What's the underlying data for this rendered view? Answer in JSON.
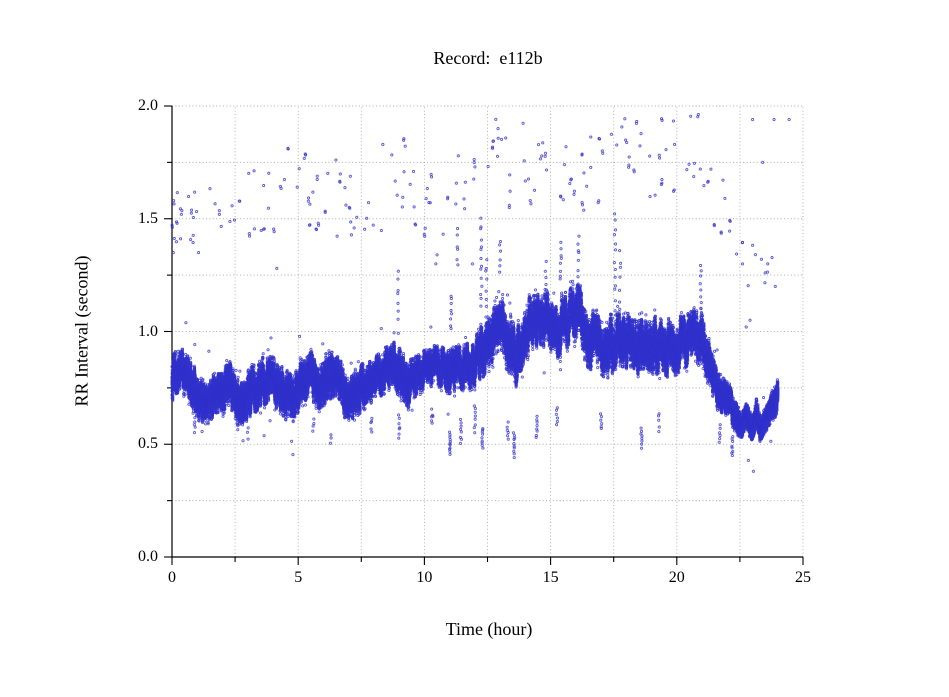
{
  "chart_data": {
    "type": "scatter",
    "title": "Record:  e112b",
    "xlabel": "Time (hour)",
    "ylabel": "RR Interval (second)",
    "xlim": [
      0,
      25
    ],
    "ylim": [
      0.0,
      2.0
    ],
    "x_major_ticks": [
      0,
      5,
      10,
      15,
      20,
      25
    ],
    "x_major_tick_labels": [
      "0",
      "5",
      "10",
      "15",
      "20",
      "25"
    ],
    "x_minor_ticks": [
      2.5,
      7.5,
      12.5,
      17.5,
      22.5
    ],
    "y_major_ticks": [
      0.0,
      0.5,
      1.0,
      1.5,
      2.0
    ],
    "y_major_tick_labels": [
      "0.0",
      "0.5",
      "1.0",
      "1.5",
      "2.0"
    ],
    "y_minor_ticks": [
      0.25,
      0.75,
      1.25,
      1.75
    ],
    "grid": "dotted-at-every-minor-and-major",
    "legend": "none",
    "style": {
      "point_color": "#3232cc",
      "grid_color": "#ababab",
      "axis_color": "#000000",
      "background": "#ffffff",
      "marker": "small-open-circle",
      "marker_size_px": 3
    },
    "seed": 42,
    "description": "24-hour RR-interval tachogram. Dense sinus-rhythm band plus sparse long-interval outliers (1.3-2.0 s).",
    "band_profile": [
      [
        0.0,
        0.79,
        0.08
      ],
      [
        0.3,
        0.83,
        0.07
      ],
      [
        0.7,
        0.78,
        0.08
      ],
      [
        1.1,
        0.7,
        0.07
      ],
      [
        1.4,
        0.67,
        0.06
      ],
      [
        1.7,
        0.73,
        0.07
      ],
      [
        2.0,
        0.72,
        0.07
      ],
      [
        2.2,
        0.8,
        0.08
      ],
      [
        2.5,
        0.7,
        0.07
      ],
      [
        2.8,
        0.68,
        0.07
      ],
      [
        3.1,
        0.73,
        0.08
      ],
      [
        3.5,
        0.76,
        0.08
      ],
      [
        3.9,
        0.8,
        0.08
      ],
      [
        4.2,
        0.74,
        0.08
      ],
      [
        4.5,
        0.72,
        0.08
      ],
      [
        4.8,
        0.7,
        0.07
      ],
      [
        5.1,
        0.78,
        0.08
      ],
      [
        5.5,
        0.8,
        0.08
      ],
      [
        5.8,
        0.74,
        0.07
      ],
      [
        6.1,
        0.79,
        0.08
      ],
      [
        6.4,
        0.81,
        0.08
      ],
      [
        6.7,
        0.75,
        0.08
      ],
      [
        7.0,
        0.7,
        0.07
      ],
      [
        7.3,
        0.73,
        0.08
      ],
      [
        7.7,
        0.77,
        0.07
      ],
      [
        8.0,
        0.79,
        0.07
      ],
      [
        8.4,
        0.82,
        0.07
      ],
      [
        8.8,
        0.88,
        0.08
      ],
      [
        9.0,
        0.8,
        0.09
      ],
      [
        9.3,
        0.76,
        0.08
      ],
      [
        9.6,
        0.8,
        0.07
      ],
      [
        10.0,
        0.83,
        0.06
      ],
      [
        10.4,
        0.85,
        0.06
      ],
      [
        10.8,
        0.83,
        0.07
      ],
      [
        11.2,
        0.82,
        0.08
      ],
      [
        11.6,
        0.84,
        0.07
      ],
      [
        12.0,
        0.86,
        0.08
      ],
      [
        12.4,
        0.92,
        0.1
      ],
      [
        12.8,
        1.0,
        0.1
      ],
      [
        13.1,
        1.02,
        0.1
      ],
      [
        13.4,
        0.95,
        0.11
      ],
      [
        13.6,
        0.88,
        0.1
      ],
      [
        13.9,
        0.98,
        0.1
      ],
      [
        14.2,
        1.03,
        0.1
      ],
      [
        14.6,
        1.07,
        0.09
      ],
      [
        15.0,
        1.04,
        0.1
      ],
      [
        15.3,
        1.0,
        0.1
      ],
      [
        15.6,
        1.05,
        0.1
      ],
      [
        15.9,
        1.09,
        0.1
      ],
      [
        16.2,
        1.05,
        0.11
      ],
      [
        16.5,
        0.97,
        0.1
      ],
      [
        16.9,
        0.94,
        0.1
      ],
      [
        17.2,
        0.92,
        0.1
      ],
      [
        17.5,
        0.96,
        0.1
      ],
      [
        17.8,
        0.97,
        0.1
      ],
      [
        18.1,
        0.93,
        0.1
      ],
      [
        18.4,
        0.92,
        0.1
      ],
      [
        18.7,
        0.95,
        0.1
      ],
      [
        19.0,
        0.96,
        0.1
      ],
      [
        19.4,
        0.94,
        0.1
      ],
      [
        19.8,
        0.93,
        0.1
      ],
      [
        20.1,
        0.95,
        0.09
      ],
      [
        20.5,
        0.96,
        0.09
      ],
      [
        20.9,
        1.0,
        0.1
      ],
      [
        21.1,
        0.95,
        0.1
      ],
      [
        21.3,
        0.85,
        0.08
      ],
      [
        21.5,
        0.76,
        0.07
      ],
      [
        21.8,
        0.71,
        0.06
      ],
      [
        22.1,
        0.68,
        0.06
      ],
      [
        22.35,
        0.62,
        0.05
      ],
      [
        22.55,
        0.57,
        0.04
      ],
      [
        22.75,
        0.63,
        0.04
      ],
      [
        23.0,
        0.56,
        0.04
      ],
      [
        23.15,
        0.65,
        0.04
      ],
      [
        23.3,
        0.57,
        0.04
      ],
      [
        23.45,
        0.6,
        0.04
      ],
      [
        23.6,
        0.63,
        0.04
      ],
      [
        23.75,
        0.66,
        0.05
      ],
      [
        23.95,
        0.7,
        0.05
      ],
      [
        24.0,
        0.72,
        0.05
      ]
    ],
    "streak_columns": [
      [
        8.95,
        0.98,
        1.3,
        8
      ],
      [
        9.0,
        0.52,
        0.64,
        7
      ],
      [
        10.3,
        0.58,
        0.66,
        5
      ],
      [
        11.0,
        0.45,
        0.56,
        11
      ],
      [
        11.05,
        1.0,
        1.17,
        8
      ],
      [
        11.3,
        1.28,
        1.47,
        6
      ],
      [
        11.45,
        0.5,
        0.62,
        8
      ],
      [
        12.0,
        0.55,
        0.68,
        8
      ],
      [
        12.25,
        1.1,
        1.52,
        14
      ],
      [
        12.3,
        0.48,
        0.58,
        9
      ],
      [
        12.45,
        1.05,
        1.35,
        8
      ],
      [
        13.0,
        1.25,
        1.42,
        6
      ],
      [
        13.3,
        0.52,
        0.6,
        6
      ],
      [
        13.55,
        0.44,
        0.56,
        10
      ],
      [
        14.45,
        0.52,
        0.63,
        8
      ],
      [
        14.8,
        1.15,
        1.32,
        6
      ],
      [
        15.25,
        0.58,
        0.67,
        6
      ],
      [
        15.4,
        1.22,
        1.4,
        8
      ],
      [
        16.1,
        1.2,
        1.45,
        8
      ],
      [
        17.0,
        0.56,
        0.64,
        6
      ],
      [
        17.55,
        1.05,
        1.55,
        14
      ],
      [
        17.75,
        1.1,
        1.4,
        6
      ],
      [
        18.6,
        0.48,
        0.58,
        8
      ],
      [
        19.3,
        0.55,
        0.65,
        5
      ],
      [
        20.95,
        1.1,
        1.3,
        8
      ],
      [
        21.7,
        0.5,
        0.6,
        6
      ],
      [
        22.2,
        0.44,
        0.54,
        8
      ],
      [
        0.9,
        0.55,
        0.63,
        5
      ],
      [
        2.6,
        0.55,
        0.62,
        4
      ],
      [
        3.0,
        0.52,
        0.58,
        3
      ],
      [
        5.6,
        0.55,
        0.62,
        4
      ],
      [
        6.3,
        0.5,
        0.56,
        3
      ],
      [
        7.9,
        0.55,
        0.63,
        5
      ]
    ],
    "outlier_regions": [
      [
        0.0,
        0.6,
        1.38,
        1.78,
        10
      ],
      [
        0.6,
        1.6,
        1.3,
        1.72,
        9
      ],
      [
        1.6,
        3.0,
        1.4,
        1.62,
        8
      ],
      [
        3.0,
        4.6,
        1.42,
        1.78,
        12
      ],
      [
        4.6,
        6.2,
        1.45,
        1.82,
        14
      ],
      [
        6.2,
        7.2,
        1.42,
        1.8,
        10
      ],
      [
        7.2,
        8.3,
        1.42,
        1.58,
        7
      ],
      [
        8.3,
        9.6,
        1.5,
        1.85,
        12
      ],
      [
        9.6,
        11.0,
        1.42,
        1.75,
        10
      ],
      [
        11.0,
        12.0,
        1.48,
        1.8,
        8
      ],
      [
        12.3,
        13.2,
        1.7,
        2.0,
        8
      ],
      [
        13.2,
        14.6,
        1.55,
        1.98,
        12
      ],
      [
        14.6,
        16.1,
        1.58,
        1.96,
        11
      ],
      [
        16.1,
        17.2,
        1.52,
        1.9,
        10
      ],
      [
        17.2,
        18.2,
        1.72,
        1.97,
        9
      ],
      [
        18.2,
        19.6,
        1.55,
        1.95,
        12
      ],
      [
        19.6,
        21.1,
        1.62,
        1.98,
        11
      ],
      [
        21.1,
        22.2,
        1.42,
        1.75,
        7
      ],
      [
        22.3,
        23.3,
        1.18,
        1.4,
        5
      ],
      [
        23.3,
        24.1,
        1.2,
        1.35,
        4
      ]
    ],
    "outlier_points": [
      [
        0.05,
        1.35
      ],
      [
        1.05,
        1.35
      ],
      [
        4.15,
        1.28
      ],
      [
        10.45,
        1.3
      ],
      [
        10.5,
        1.34
      ],
      [
        11.9,
        1.3
      ],
      [
        12.0,
        1.73
      ],
      [
        21.35,
        1.72
      ],
      [
        22.6,
        1.3
      ],
      [
        22.75,
        1.02
      ],
      [
        22.9,
        1.05
      ],
      [
        23.0,
        1.94
      ],
      [
        23.4,
        1.75
      ],
      [
        23.5,
        1.26
      ],
      [
        23.6,
        1.3
      ],
      [
        23.85,
        1.94
      ],
      [
        24.45,
        1.94
      ],
      [
        23.9,
        1.2
      ]
    ]
  }
}
